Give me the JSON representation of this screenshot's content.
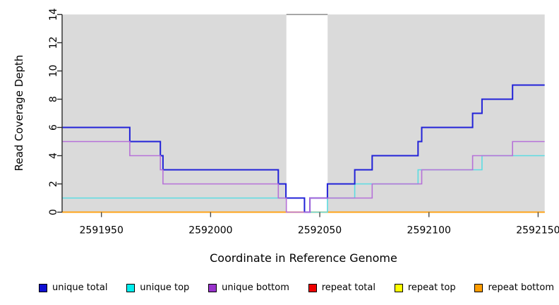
{
  "figure": {
    "x_axis_title": "Coordinate in Reference Genome",
    "y_axis_title": "Read Coverage Depth"
  },
  "chart_data": {
    "type": "line",
    "subtype": "step-coverage",
    "title": "",
    "xlabel": "Coordinate in Reference Genome",
    "ylabel": "Read Coverage Depth",
    "xlim": [
      2591932,
      2592153
    ],
    "ylim": [
      0,
      14
    ],
    "x_ticks": [
      2591950,
      2592000,
      2592050,
      2592100,
      2592150
    ],
    "y_ticks": [
      0,
      2,
      4,
      6,
      8,
      10,
      12,
      14
    ],
    "grid": false,
    "panel_bg": "#dadada",
    "axis_color": "#2b2b2b",
    "highlight_band": {
      "x_start": 2592034.7,
      "x_end": 2592053.6,
      "fill": "#ffffff",
      "top_border": "#8a8a8a",
      "meaning": "white band where coverage drops"
    },
    "legend_position": "bottom",
    "legend": [
      {
        "label": "unique total",
        "fill": "#0f0fd2"
      },
      {
        "label": "unique top",
        "fill": "#00eeee"
      },
      {
        "label": "unique bottom",
        "fill": "#9933cc"
      },
      {
        "label": "repeat total",
        "fill": "#ee0000"
      },
      {
        "label": "repeat top",
        "fill": "#ffff00"
      },
      {
        "label": "repeat bottom",
        "fill": "#ff9d00"
      }
    ],
    "series": [
      {
        "name": "repeat total",
        "color": "#dd0000",
        "width": 1.5,
        "points": [
          [
            2591932,
            0
          ],
          [
            2592153,
            0
          ]
        ]
      },
      {
        "name": "repeat top",
        "color": "#ffff00",
        "width": 1.5,
        "points": [
          [
            2591932,
            0
          ],
          [
            2592153,
            0
          ]
        ]
      },
      {
        "name": "repeat bottom",
        "color": "#ffa319",
        "width": 2,
        "points": [
          [
            2591932,
            0
          ],
          [
            2592153,
            0
          ]
        ]
      },
      {
        "name": "unique top",
        "color": "#5cdce2",
        "width": 1.6,
        "points": [
          [
            2591932,
            1
          ],
          [
            2592043,
            1
          ],
          [
            2592043,
            0
          ],
          [
            2592053.5,
            0
          ],
          [
            2592053.5,
            1
          ],
          [
            2592066,
            1
          ],
          [
            2592066,
            2
          ],
          [
            2592095,
            2
          ],
          [
            2592095,
            3
          ],
          [
            2592124.3,
            3
          ],
          [
            2592124.3,
            4
          ],
          [
            2592153,
            4
          ]
        ]
      },
      {
        "name": "unique total",
        "color": "#2222d8",
        "width": 2,
        "points": [
          [
            2591932,
            6
          ],
          [
            2591963,
            6
          ],
          [
            2591963,
            5
          ],
          [
            2591977,
            5
          ],
          [
            2591977,
            4
          ],
          [
            2591978.2,
            4
          ],
          [
            2591978.2,
            3
          ],
          [
            2592031,
            3
          ],
          [
            2592031,
            2
          ],
          [
            2592034.5,
            2
          ],
          [
            2592034.5,
            1
          ],
          [
            2592043,
            1
          ],
          [
            2592043,
            0
          ],
          [
            2592045.5,
            0
          ],
          [
            2592045.5,
            1
          ],
          [
            2592053.5,
            1
          ],
          [
            2592053.5,
            2
          ],
          [
            2592066,
            2
          ],
          [
            2592066,
            3
          ],
          [
            2592074,
            3
          ],
          [
            2592074,
            4
          ],
          [
            2592095,
            4
          ],
          [
            2592095,
            5
          ],
          [
            2592096.7,
            5
          ],
          [
            2592096.7,
            6
          ],
          [
            2592120,
            6
          ],
          [
            2592120,
            7
          ],
          [
            2592124.3,
            7
          ],
          [
            2592124.3,
            8
          ],
          [
            2592138.3,
            8
          ],
          [
            2592138.3,
            9
          ],
          [
            2592153,
            9
          ]
        ]
      },
      {
        "name": "unique bottom",
        "color": "#b671d8",
        "width": 1.6,
        "points": [
          [
            2591932,
            5
          ],
          [
            2591963,
            5
          ],
          [
            2591963,
            4
          ],
          [
            2591977,
            4
          ],
          [
            2591977,
            3
          ],
          [
            2591978.2,
            3
          ],
          [
            2591978.2,
            2
          ],
          [
            2592031,
            2
          ],
          [
            2592031,
            1
          ],
          [
            2592034.7,
            1
          ],
          [
            2592034.7,
            0
          ],
          [
            2592045.5,
            0
          ],
          [
            2592045.5,
            1
          ],
          [
            2592074,
            1
          ],
          [
            2592074,
            2
          ],
          [
            2592096.7,
            2
          ],
          [
            2592096.7,
            3
          ],
          [
            2592120,
            3
          ],
          [
            2592120,
            4
          ],
          [
            2592138.3,
            4
          ],
          [
            2592138.3,
            5
          ],
          [
            2592153,
            5
          ]
        ]
      }
    ]
  }
}
